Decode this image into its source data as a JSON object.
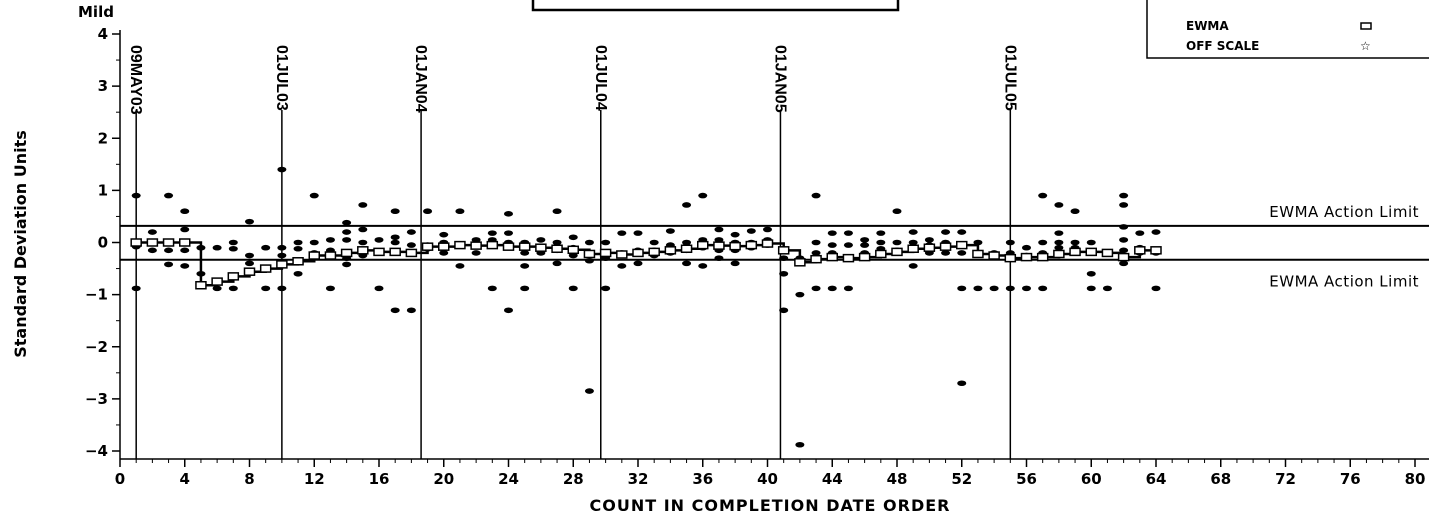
{
  "chart_data": {
    "type": "scatter",
    "top_left_label": "Mild",
    "xlabel": "COUNT IN COMPLETION DATE ORDER",
    "ylabel": "Standard Deviation Units",
    "xlim": [
      0,
      80
    ],
    "ylim": [
      -4,
      4
    ],
    "x_ticks": [
      0,
      4,
      8,
      12,
      16,
      20,
      24,
      28,
      32,
      36,
      40,
      44,
      48,
      52,
      56,
      60,
      64,
      68,
      72,
      76,
      80
    ],
    "y_ticks": [
      4,
      3,
      2,
      1,
      0,
      -1,
      -2,
      -3,
      -4
    ],
    "y_tick_labels": [
      "4",
      "3",
      "2",
      "1",
      "0",
      "−1",
      "−2",
      "−3",
      "−4"
    ],
    "legend": {
      "placement": "top-right",
      "entries": [
        {
          "label": "EWMA",
          "marker": "square"
        },
        {
          "label": "OFF SCALE",
          "marker": "star"
        }
      ]
    },
    "limits": [
      {
        "label": "EWMA Action Limit",
        "y": 0.32
      },
      {
        "label": "EWMA Action Limit",
        "y": -0.33
      }
    ],
    "date_markers": [
      {
        "label": "09MAY03",
        "x": 1
      },
      {
        "label": "01JUL03",
        "x": 10
      },
      {
        "label": "01JAN04",
        "x": 18.6
      },
      {
        "label": "01JUL04",
        "x": 29.7
      },
      {
        "label": "01JAN05",
        "x": 40.8
      },
      {
        "label": "01JUL05",
        "x": 55
      }
    ],
    "ewma": {
      "x": [
        1,
        2,
        3,
        4,
        5,
        6,
        7,
        8,
        9,
        10,
        11,
        12,
        13,
        14,
        15,
        16,
        17,
        18,
        19,
        20,
        21,
        22,
        23,
        24,
        25,
        26,
        27,
        28,
        29,
        30,
        31,
        32,
        33,
        34,
        35,
        36,
        37,
        38,
        39,
        40,
        41,
        42,
        43,
        44,
        45,
        46,
        47,
        48,
        49,
        50,
        51,
        52,
        53,
        54,
        55,
        56,
        57,
        58,
        59,
        60,
        61,
        62,
        63,
        64
      ],
      "y": [
        0,
        0,
        0,
        0,
        -0.82,
        -0.75,
        -0.65,
        -0.56,
        -0.5,
        -0.42,
        -0.36,
        -0.25,
        -0.25,
        -0.2,
        -0.15,
        -0.18,
        -0.18,
        -0.2,
        -0.08,
        -0.08,
        -0.05,
        -0.06,
        -0.05,
        -0.08,
        -0.08,
        -0.1,
        -0.12,
        -0.14,
        -0.22,
        -0.2,
        -0.23,
        -0.2,
        -0.18,
        -0.15,
        -0.12,
        -0.05,
        -0.06,
        -0.07,
        -0.05,
        -0.02,
        -0.15,
        -0.38,
        -0.32,
        -0.28,
        -0.3,
        -0.28,
        -0.22,
        -0.18,
        -0.12,
        -0.1,
        -0.08,
        -0.05,
        -0.22,
        -0.25,
        -0.3,
        -0.28,
        -0.28,
        -0.22,
        -0.18,
        -0.18,
        -0.2,
        -0.28,
        -0.15,
        -0.15
      ]
    },
    "observations": [
      [
        1,
        0.9
      ],
      [
        1,
        -0.88
      ],
      [
        1,
        -0.08
      ],
      [
        2,
        0.2
      ],
      [
        2,
        -0.15
      ],
      [
        3,
        0.9
      ],
      [
        3,
        -0.15
      ],
      [
        3,
        -0.42
      ],
      [
        4,
        0.6
      ],
      [
        4,
        0.25
      ],
      [
        4,
        -0.15
      ],
      [
        4,
        -0.45
      ],
      [
        5,
        -0.1
      ],
      [
        5,
        -0.6
      ],
      [
        6,
        -0.1
      ],
      [
        6,
        -0.88
      ],
      [
        7,
        0
      ],
      [
        7,
        -0.12
      ],
      [
        7,
        -0.88
      ],
      [
        8,
        0.4
      ],
      [
        8,
        -0.25
      ],
      [
        8,
        -0.4
      ],
      [
        9,
        -0.1
      ],
      [
        9,
        -0.88
      ],
      [
        10,
        1.4
      ],
      [
        10,
        -0.1
      ],
      [
        10,
        -0.25
      ],
      [
        10,
        -0.88
      ],
      [
        11,
        0
      ],
      [
        11,
        -0.12
      ],
      [
        11,
        -0.6
      ],
      [
        12,
        0.9
      ],
      [
        12,
        0
      ],
      [
        12,
        -0.2
      ],
      [
        13,
        0.05
      ],
      [
        13,
        -0.15
      ],
      [
        13,
        -0.88
      ],
      [
        14,
        0.38
      ],
      [
        14,
        0.2
      ],
      [
        14,
        0.05
      ],
      [
        14,
        -0.3
      ],
      [
        14,
        -0.42
      ],
      [
        15,
        0.72
      ],
      [
        15,
        0.25
      ],
      [
        15,
        0
      ],
      [
        15,
        -0.25
      ],
      [
        16,
        0.05
      ],
      [
        16,
        -0.2
      ],
      [
        16,
        -0.88
      ],
      [
        17,
        0.6
      ],
      [
        17,
        0.1
      ],
      [
        17,
        0
      ],
      [
        17,
        -0.2
      ],
      [
        17,
        -1.3
      ],
      [
        18,
        0.2
      ],
      [
        18,
        -0.05
      ],
      [
        18,
        -0.2
      ],
      [
        18,
        -1.3
      ],
      [
        19,
        0.6
      ],
      [
        19,
        -0.05
      ],
      [
        19,
        -0.12
      ],
      [
        20,
        0.15
      ],
      [
        20,
        0
      ],
      [
        20,
        -0.1
      ],
      [
        20,
        -0.2
      ],
      [
        21,
        0.6
      ],
      [
        21,
        -0.05
      ],
      [
        21,
        -0.45
      ],
      [
        22,
        0.05
      ],
      [
        22,
        -0.08
      ],
      [
        22,
        -0.2
      ],
      [
        23,
        0.18
      ],
      [
        23,
        0.05
      ],
      [
        23,
        -0.88
      ],
      [
        24,
        0.55
      ],
      [
        24,
        0.18
      ],
      [
        24,
        0
      ],
      [
        24,
        -0.1
      ],
      [
        24,
        -1.3
      ],
      [
        25,
        0
      ],
      [
        25,
        -0.2
      ],
      [
        25,
        -0.45
      ],
      [
        25,
        -0.88
      ],
      [
        26,
        0.05
      ],
      [
        26,
        -0.1
      ],
      [
        26,
        -0.2
      ],
      [
        27,
        0.6
      ],
      [
        27,
        0
      ],
      [
        27,
        -0.15
      ],
      [
        27,
        -0.4
      ],
      [
        28,
        0.1
      ],
      [
        28,
        -0.1
      ],
      [
        28,
        -0.25
      ],
      [
        28,
        -0.88
      ],
      [
        29,
        0
      ],
      [
        29,
        -0.2
      ],
      [
        29,
        -0.35
      ],
      [
        29,
        -2.85
      ],
      [
        30,
        0
      ],
      [
        30,
        -0.3
      ],
      [
        30,
        -0.88
      ],
      [
        31,
        0.18
      ],
      [
        31,
        -0.2
      ],
      [
        31,
        -0.45
      ],
      [
        32,
        0.18
      ],
      [
        32,
        -0.15
      ],
      [
        32,
        -0.4
      ],
      [
        33,
        0
      ],
      [
        33,
        -0.15
      ],
      [
        33,
        -0.25
      ],
      [
        34,
        0.22
      ],
      [
        34,
        -0.05
      ],
      [
        34,
        -0.2
      ],
      [
        35,
        0.72
      ],
      [
        35,
        0
      ],
      [
        35,
        -0.15
      ],
      [
        35,
        -0.4
      ],
      [
        36,
        0.9
      ],
      [
        36,
        0.05
      ],
      [
        36,
        -0.1
      ],
      [
        36,
        -0.45
      ],
      [
        37,
        0.25
      ],
      [
        37,
        0.05
      ],
      [
        37,
        -0.15
      ],
      [
        37,
        -0.3
      ],
      [
        38,
        0.15
      ],
      [
        38,
        0
      ],
      [
        38,
        -0.15
      ],
      [
        38,
        -0.4
      ],
      [
        39,
        0.22
      ],
      [
        39,
        0
      ],
      [
        39,
        -0.1
      ],
      [
        40,
        0.25
      ],
      [
        40,
        0.05
      ],
      [
        40,
        -0.05
      ],
      [
        41,
        -0.3
      ],
      [
        41,
        -0.6
      ],
      [
        41,
        -1.3
      ],
      [
        42,
        -0.3
      ],
      [
        42,
        -1
      ],
      [
        42,
        -3.88
      ],
      [
        43,
        0.9
      ],
      [
        43,
        0
      ],
      [
        43,
        -0.2
      ],
      [
        43,
        -0.88
      ],
      [
        44,
        0.18
      ],
      [
        44,
        -0.05
      ],
      [
        44,
        -0.2
      ],
      [
        44,
        -0.88
      ],
      [
        45,
        0.18
      ],
      [
        45,
        -0.05
      ],
      [
        45,
        -0.88
      ],
      [
        46,
        0.05
      ],
      [
        46,
        -0.05
      ],
      [
        46,
        -0.2
      ],
      [
        47,
        0.18
      ],
      [
        47,
        0
      ],
      [
        47,
        -0.12
      ],
      [
        48,
        0.6
      ],
      [
        48,
        0
      ],
      [
        48,
        -0.15
      ],
      [
        49,
        0.2
      ],
      [
        49,
        0
      ],
      [
        49,
        -0.12
      ],
      [
        49,
        -0.45
      ],
      [
        50,
        0.05
      ],
      [
        50,
        -0.05
      ],
      [
        50,
        -0.2
      ],
      [
        51,
        0.2
      ],
      [
        51,
        0
      ],
      [
        51,
        -0.1
      ],
      [
        51,
        -0.2
      ],
      [
        52,
        0.2
      ],
      [
        52,
        -0.2
      ],
      [
        52,
        -0.88
      ],
      [
        52,
        -2.7
      ],
      [
        53,
        0
      ],
      [
        53,
        -0.2
      ],
      [
        53,
        -0.88
      ],
      [
        54,
        -0.2
      ],
      [
        54,
        -0.88
      ],
      [
        55,
        0
      ],
      [
        55,
        -0.2
      ],
      [
        55,
        -0.88
      ],
      [
        56,
        -0.1
      ],
      [
        56,
        -0.25
      ],
      [
        56,
        -0.88
      ],
      [
        57,
        0.9
      ],
      [
        57,
        0
      ],
      [
        57,
        -0.2
      ],
      [
        57,
        -0.88
      ],
      [
        58,
        0.72
      ],
      [
        58,
        0.18
      ],
      [
        58,
        0
      ],
      [
        58,
        -0.1
      ],
      [
        58,
        -0.25
      ],
      [
        59,
        0.6
      ],
      [
        59,
        0
      ],
      [
        59,
        -0.1
      ],
      [
        60,
        0
      ],
      [
        60,
        -0.2
      ],
      [
        60,
        -0.6
      ],
      [
        60,
        -0.88
      ],
      [
        61,
        -0.2
      ],
      [
        61,
        -0.88
      ],
      [
        62,
        0.9
      ],
      [
        62,
        0.72
      ],
      [
        62,
        0.3
      ],
      [
        62,
        0.05
      ],
      [
        62,
        -0.15
      ],
      [
        62,
        -0.4
      ],
      [
        63,
        0.18
      ],
      [
        63,
        -0.1
      ],
      [
        63,
        -0.2
      ],
      [
        64,
        0.2
      ],
      [
        64,
        -0.2
      ],
      [
        64,
        -0.88
      ]
    ]
  }
}
